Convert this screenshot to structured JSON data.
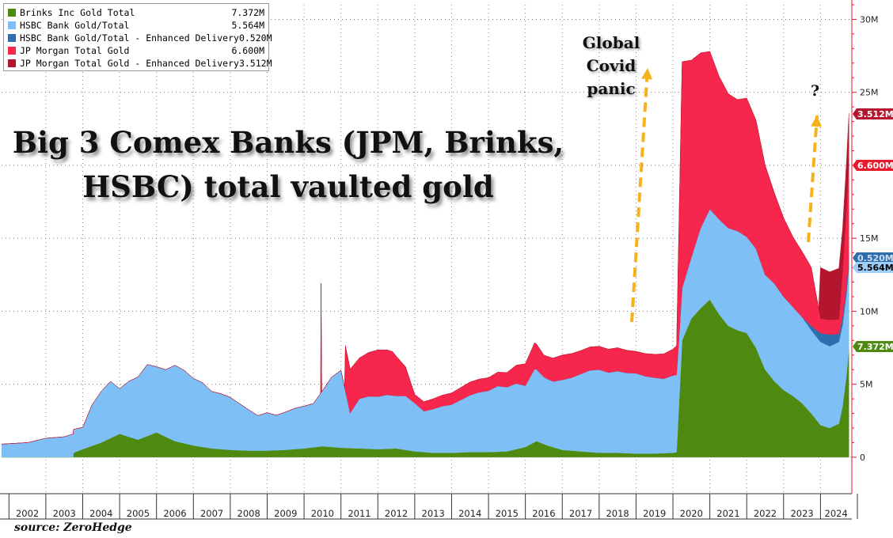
{
  "chart_data": {
    "type": "area",
    "title": "Big 3 Comex Banks (JPM, Brinks,\nHSBC) total vaulted gold",
    "xlabel": "",
    "ylabel": "",
    "x_ticks": [
      "2002",
      "2003",
      "2004",
      "2005",
      "2006",
      "2007",
      "2008",
      "2009",
      "2010",
      "2011",
      "2012",
      "2013",
      "2014",
      "2015",
      "2016",
      "2017",
      "2018",
      "2019",
      "2020",
      "2021",
      "2022",
      "2023",
      "2024"
    ],
    "y_ticks": [
      0,
      5000000,
      10000000,
      15000000,
      20000000,
      25000000,
      30000000
    ],
    "y_tick_labels": [
      "0",
      "5M",
      "10M",
      "15M",
      "20M",
      "25M",
      "30M"
    ],
    "ylim": [
      -2500000,
      31000000
    ],
    "xlim": [
      2001.8,
      2024.85
    ],
    "y_axis_position": "right",
    "grid": true,
    "legend_position": "top-left",
    "series": [
      {
        "name": "Brinks Inc Gold Total",
        "color": "#4f8a10",
        "last_value": "7.372M",
        "points": [
          [
            2003.75,
            0.3
          ],
          [
            2004.0,
            0.55
          ],
          [
            2004.5,
            1.0
          ],
          [
            2005.0,
            1.6
          ],
          [
            2005.5,
            1.2
          ],
          [
            2006.0,
            1.7
          ],
          [
            2006.5,
            1.1
          ],
          [
            2007.0,
            0.8
          ],
          [
            2007.5,
            0.6
          ],
          [
            2008.0,
            0.5
          ],
          [
            2008.5,
            0.45
          ],
          [
            2009.0,
            0.45
          ],
          [
            2009.5,
            0.5
          ],
          [
            2010.0,
            0.6
          ],
          [
            2010.5,
            0.75
          ],
          [
            2011.0,
            0.65
          ],
          [
            2011.5,
            0.6
          ],
          [
            2012.0,
            0.55
          ],
          [
            2012.5,
            0.6
          ],
          [
            2013.0,
            0.4
          ],
          [
            2013.5,
            0.3
          ],
          [
            2014.0,
            0.3
          ],
          [
            2014.5,
            0.35
          ],
          [
            2015.0,
            0.35
          ],
          [
            2015.5,
            0.4
          ],
          [
            2016.0,
            0.7
          ],
          [
            2016.3,
            1.1
          ],
          [
            2016.6,
            0.8
          ],
          [
            2017.0,
            0.5
          ],
          [
            2017.5,
            0.4
          ],
          [
            2018.0,
            0.3
          ],
          [
            2018.5,
            0.3
          ],
          [
            2019.0,
            0.25
          ],
          [
            2019.5,
            0.25
          ],
          [
            2020.0,
            0.3
          ],
          [
            2020.1,
            0.35
          ],
          [
            2020.25,
            8.0
          ],
          [
            2020.5,
            9.5
          ],
          [
            2020.75,
            10.2
          ],
          [
            2021.0,
            10.8
          ],
          [
            2021.25,
            9.8
          ],
          [
            2021.5,
            9.0
          ],
          [
            2021.75,
            8.7
          ],
          [
            2022.0,
            8.5
          ],
          [
            2022.25,
            7.5
          ],
          [
            2022.5,
            6.0
          ],
          [
            2022.75,
            5.2
          ],
          [
            2023.0,
            4.6
          ],
          [
            2023.25,
            4.2
          ],
          [
            2023.5,
            3.7
          ],
          [
            2023.75,
            3.0
          ],
          [
            2024.0,
            2.2
          ],
          [
            2024.25,
            2.0
          ],
          [
            2024.5,
            2.3
          ],
          [
            2024.6,
            3.5
          ],
          [
            2024.7,
            5.5
          ],
          [
            2024.77,
            7.372
          ]
        ]
      },
      {
        "name": "HSBC Bank Gold/Total",
        "color": "#7ec0f5",
        "last_value": "5.564M",
        "points": [
          [
            2001.8,
            0.9
          ],
          [
            2002.5,
            1.0
          ],
          [
            2003.0,
            1.3
          ],
          [
            2003.5,
            1.4
          ],
          [
            2003.75,
            1.6
          ],
          [
            2004.0,
            1.5
          ],
          [
            2004.25,
            2.8
          ],
          [
            2004.5,
            3.5
          ],
          [
            2004.75,
            3.9
          ],
          [
            2005.0,
            3.1
          ],
          [
            2005.25,
            3.8
          ],
          [
            2005.5,
            4.3
          ],
          [
            2005.75,
            4.9
          ],
          [
            2006.0,
            4.5
          ],
          [
            2006.25,
            4.6
          ],
          [
            2006.5,
            5.2
          ],
          [
            2006.75,
            5.0
          ],
          [
            2007.0,
            4.6
          ],
          [
            2007.25,
            4.4
          ],
          [
            2007.5,
            3.9
          ],
          [
            2007.75,
            3.8
          ],
          [
            2008.0,
            3.6
          ],
          [
            2008.25,
            3.2
          ],
          [
            2008.5,
            2.8
          ],
          [
            2008.75,
            2.4
          ],
          [
            2009.0,
            2.6
          ],
          [
            2009.25,
            2.4
          ],
          [
            2009.5,
            2.6
          ],
          [
            2009.75,
            2.8
          ],
          [
            2010.0,
            2.9
          ],
          [
            2010.25,
            3.0
          ],
          [
            2010.5,
            3.8
          ],
          [
            2010.75,
            4.8
          ],
          [
            2011.0,
            5.3
          ],
          [
            2011.25,
            2.4
          ],
          [
            2011.5,
            3.4
          ],
          [
            2011.75,
            3.6
          ],
          [
            2012.0,
            3.6
          ],
          [
            2012.25,
            3.7
          ],
          [
            2012.5,
            3.6
          ],
          [
            2012.75,
            3.7
          ],
          [
            2013.0,
            3.3
          ],
          [
            2013.25,
            2.8
          ],
          [
            2013.5,
            3.0
          ],
          [
            2013.75,
            3.2
          ],
          [
            2014.0,
            3.3
          ],
          [
            2014.25,
            3.6
          ],
          [
            2014.5,
            3.9
          ],
          [
            2014.75,
            4.1
          ],
          [
            2015.0,
            4.2
          ],
          [
            2015.25,
            4.5
          ],
          [
            2015.5,
            4.4
          ],
          [
            2015.75,
            4.5
          ],
          [
            2016.0,
            4.2
          ],
          [
            2016.25,
            5.0
          ],
          [
            2016.5,
            4.6
          ],
          [
            2016.75,
            4.5
          ],
          [
            2017.0,
            4.8
          ],
          [
            2017.25,
            5.0
          ],
          [
            2017.5,
            5.3
          ],
          [
            2017.75,
            5.6
          ],
          [
            2018.0,
            5.7
          ],
          [
            2018.25,
            5.5
          ],
          [
            2018.5,
            5.6
          ],
          [
            2018.75,
            5.5
          ],
          [
            2019.0,
            5.5
          ],
          [
            2019.25,
            5.3
          ],
          [
            2019.5,
            5.2
          ],
          [
            2019.75,
            5.1
          ],
          [
            2020.0,
            5.3
          ],
          [
            2020.1,
            5.3
          ],
          [
            2020.25,
            3.6
          ],
          [
            2020.5,
            4.2
          ],
          [
            2020.75,
            5.5
          ],
          [
            2021.0,
            6.2
          ],
          [
            2021.25,
            6.5
          ],
          [
            2021.5,
            6.7
          ],
          [
            2021.75,
            6.8
          ],
          [
            2022.0,
            6.6
          ],
          [
            2022.25,
            6.8
          ],
          [
            2022.5,
            6.5
          ],
          [
            2022.75,
            6.7
          ],
          [
            2023.0,
            6.4
          ],
          [
            2023.25,
            6.1
          ],
          [
            2023.5,
            5.9
          ],
          [
            2023.75,
            5.7
          ],
          [
            2024.0,
            5.7
          ],
          [
            2024.25,
            5.6
          ],
          [
            2024.5,
            5.6
          ],
          [
            2024.77,
            5.564
          ]
        ]
      },
      {
        "name": "HSBC Bank Gold/Total - Enhanced Delivery",
        "color": "#2e6ead",
        "last_value": "0.520M",
        "points": [
          [
            2001.8,
            0
          ],
          [
            2023.5,
            0
          ],
          [
            2023.75,
            0.3
          ],
          [
            2024.0,
            0.6
          ],
          [
            2024.25,
            0.8
          ],
          [
            2024.5,
            0.55
          ],
          [
            2024.77,
            0.52
          ]
        ]
      },
      {
        "name": "JP Morgan Total Gold",
        "color": "#f7264c",
        "last_value": "6.600M",
        "points": [
          [
            2001.8,
            0
          ],
          [
            2010.45,
            0
          ],
          [
            2010.46,
            7.5
          ],
          [
            2010.48,
            0
          ],
          [
            2011.1,
            0
          ],
          [
            2011.12,
            3.1
          ],
          [
            2011.5,
            2.8
          ],
          [
            2012.0,
            3.2
          ],
          [
            2012.4,
            3.0
          ],
          [
            2012.75,
            2.0
          ],
          [
            2013.0,
            0.6
          ],
          [
            2013.5,
            0.7
          ],
          [
            2014.0,
            0.8
          ],
          [
            2014.5,
            0.9
          ],
          [
            2015.0,
            0.9
          ],
          [
            2015.5,
            1.0
          ],
          [
            2016.0,
            1.5
          ],
          [
            2016.25,
            1.8
          ],
          [
            2016.5,
            1.5
          ],
          [
            2017.0,
            1.7
          ],
          [
            2017.5,
            1.6
          ],
          [
            2018.0,
            1.6
          ],
          [
            2018.5,
            1.6
          ],
          [
            2019.0,
            1.5
          ],
          [
            2019.5,
            1.6
          ],
          [
            2020.0,
            1.8
          ],
          [
            2020.1,
            2.0
          ],
          [
            2020.25,
            15.5
          ],
          [
            2020.5,
            13.5
          ],
          [
            2020.75,
            12.0
          ],
          [
            2021.0,
            10.8
          ],
          [
            2021.25,
            9.8
          ],
          [
            2021.5,
            9.2
          ],
          [
            2021.75,
            9.0
          ],
          [
            2022.0,
            9.5
          ],
          [
            2022.25,
            8.8
          ],
          [
            2022.5,
            7.5
          ],
          [
            2022.75,
            6.2
          ],
          [
            2023.0,
            5.4
          ],
          [
            2023.25,
            4.8
          ],
          [
            2023.5,
            4.5
          ],
          [
            2023.75,
            4.0
          ],
          [
            2024.0,
            1.0
          ],
          [
            2024.5,
            1.0
          ],
          [
            2024.77,
            6.6
          ]
        ]
      },
      {
        "name": "JP Morgan Total Gold - Enhanced Delivery",
        "color": "#b3162e",
        "last_value": "3.512M",
        "points": [
          [
            2001.8,
            0
          ],
          [
            2023.95,
            0
          ],
          [
            2024.0,
            3.5
          ],
          [
            2024.25,
            3.3
          ],
          [
            2024.5,
            3.5
          ],
          [
            2024.6,
            3.0
          ],
          [
            2024.7,
            3.3
          ],
          [
            2024.77,
            3.512
          ]
        ]
      }
    ]
  },
  "annotations": {
    "covid_text": "Global\nCovid\npanic",
    "question": "?",
    "source": "source: ZeroHedge"
  }
}
